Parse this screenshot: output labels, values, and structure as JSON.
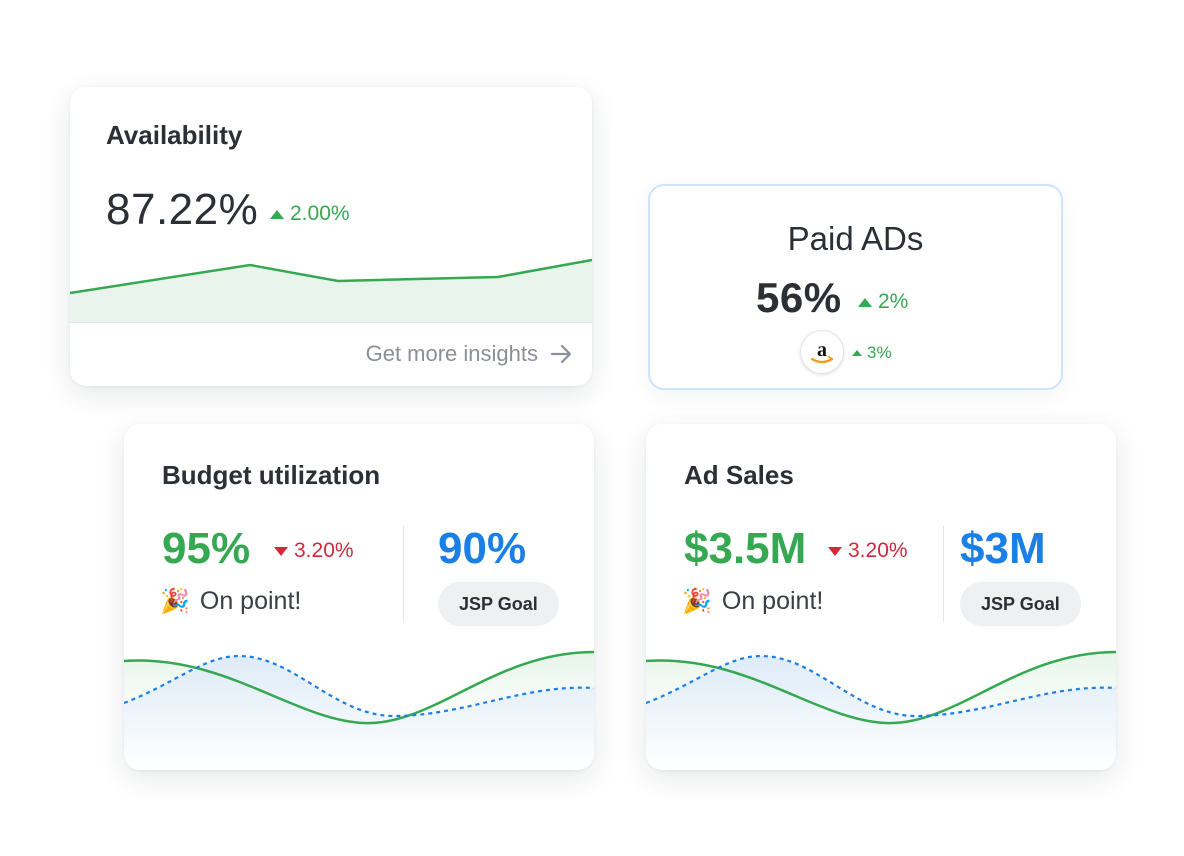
{
  "availability": {
    "title": "Availability",
    "value": "87.22%",
    "delta": "2.00%",
    "link": "Get more insights"
  },
  "paid_ads": {
    "title": "Paid ADs",
    "value": "56%",
    "delta": "2%",
    "amazon_delta": "3%",
    "amazon_logo": "a"
  },
  "budget": {
    "title": "Budget utilization",
    "value": "95%",
    "delta": "3.20%",
    "status": "On point!",
    "goal_value": "90%",
    "goal_label": "JSP Goal"
  },
  "ad_sales": {
    "title": "Ad Sales",
    "value": "$3.5M",
    "delta": "3.20%",
    "status": "On point!",
    "goal_value": "$3M",
    "goal_label": "JSP Goal"
  },
  "colors": {
    "positive": "#36a852",
    "negative": "#d2283c",
    "goal": "#1a7fe6",
    "text": "#2b2f36"
  },
  "icons": [
    "triangle-up-icon",
    "triangle-down-icon",
    "arrow-right-icon",
    "party-popper-icon",
    "amazon-logo-icon"
  ]
}
